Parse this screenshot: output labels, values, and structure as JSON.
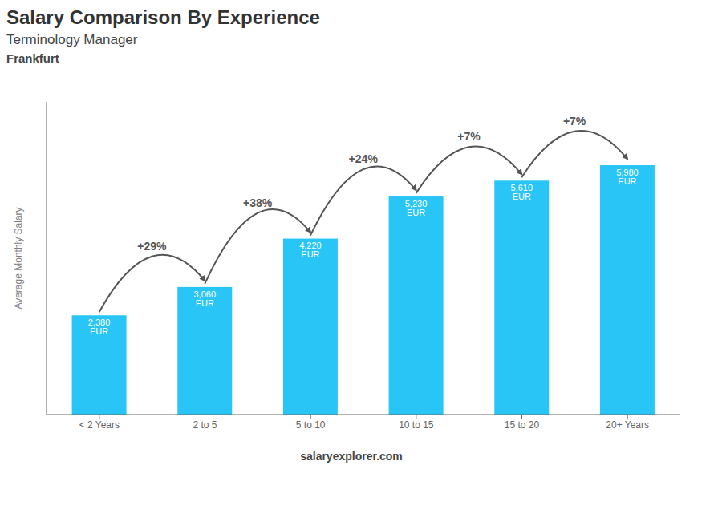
{
  "chart_data": {
    "type": "bar",
    "title": "Salary Comparison By Experience",
    "subtitle": "Terminology Manager",
    "categories": [
      "< 2 Years",
      "2 to 5",
      "5 to 10",
      "10 to 15",
      "15 to 20",
      "20+ Years"
    ],
    "values": [
      2380,
      3060,
      4220,
      5230,
      5610,
      5980
    ],
    "value_labels": [
      "2,380 EUR",
      "3,060 EUR",
      "4,220 EUR",
      "5,230 EUR",
      "5,610 EUR",
      "5,980 EUR"
    ],
    "data_labels": true,
    "color": "#29c5f6",
    "ylabel": "Average Monthly Salary",
    "ylim": [
      0,
      7500
    ],
    "grid": false,
    "tick_labels": "x",
    "annotations": [
      {
        "text": "Frankfurt"
      },
      {
        "text": "+29%",
        "from": "< 2 Years",
        "to": "2 to 5"
      },
      {
        "text": "+38%",
        "from": "2 to 5",
        "to": "5 to 10"
      },
      {
        "text": "+24%",
        "from": "5 to 10",
        "to": "10 to 15"
      },
      {
        "text": "+7%",
        "from": "10 to 15",
        "to": "15 to 20"
      },
      {
        "text": "+7%",
        "from": "15 to 20",
        "to": "20+ Years"
      },
      {
        "text": "salaryexplorer.com"
      }
    ]
  }
}
